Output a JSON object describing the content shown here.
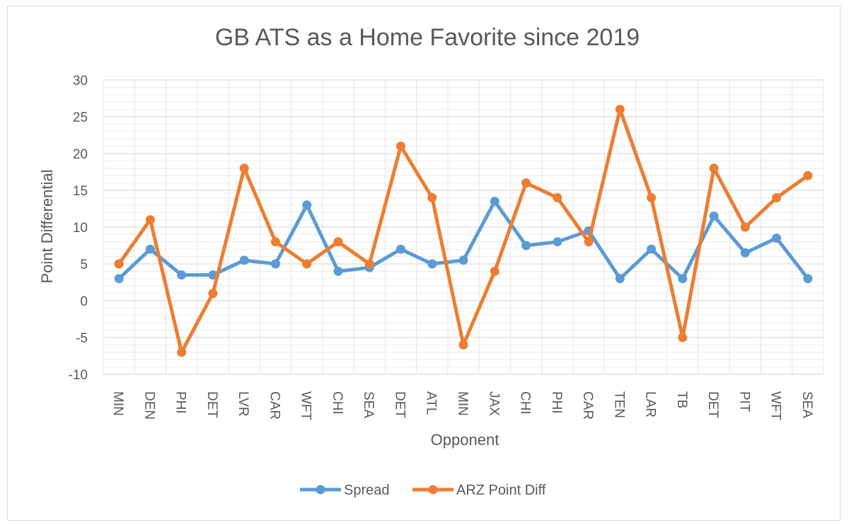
{
  "chart_data": {
    "type": "line",
    "title": "GB ATS as a Home Favorite since 2019",
    "xlabel": "Opponent",
    "ylabel": "Point Differential",
    "categories": [
      "MIN",
      "DEN",
      "PHI",
      "DET",
      "LVR",
      "CAR",
      "WFT",
      "CHI",
      "SEA",
      "DET",
      "ATL",
      "MIN",
      "JAX",
      "CHI",
      "PHI",
      "CAR",
      "TEN",
      "LAR",
      "TB",
      "DET",
      "PIT",
      "WFT",
      "SEA"
    ],
    "ylim": [
      -10,
      30
    ],
    "yticks": [
      "30",
      "25",
      "20",
      "15",
      "10",
      "5",
      "0",
      "-5",
      "-10"
    ],
    "grid": true,
    "legend_position": "bottom",
    "series": [
      {
        "name": "Spread",
        "color": "#5b9bd5",
        "values": [
          3,
          7,
          3.5,
          3.5,
          5.5,
          5,
          13,
          4,
          4.5,
          7,
          5,
          5.5,
          13.5,
          7.5,
          8,
          9.5,
          3,
          7,
          3,
          11.5,
          6.5,
          8.5,
          3
        ]
      },
      {
        "name": "ARZ Point Diff",
        "color": "#ed7d31",
        "values": [
          5,
          11,
          -7,
          1,
          18,
          8,
          5,
          8,
          5,
          21,
          14,
          -6,
          4,
          16,
          14,
          8,
          26,
          14,
          -5,
          18,
          10,
          14,
          17
        ]
      }
    ]
  }
}
